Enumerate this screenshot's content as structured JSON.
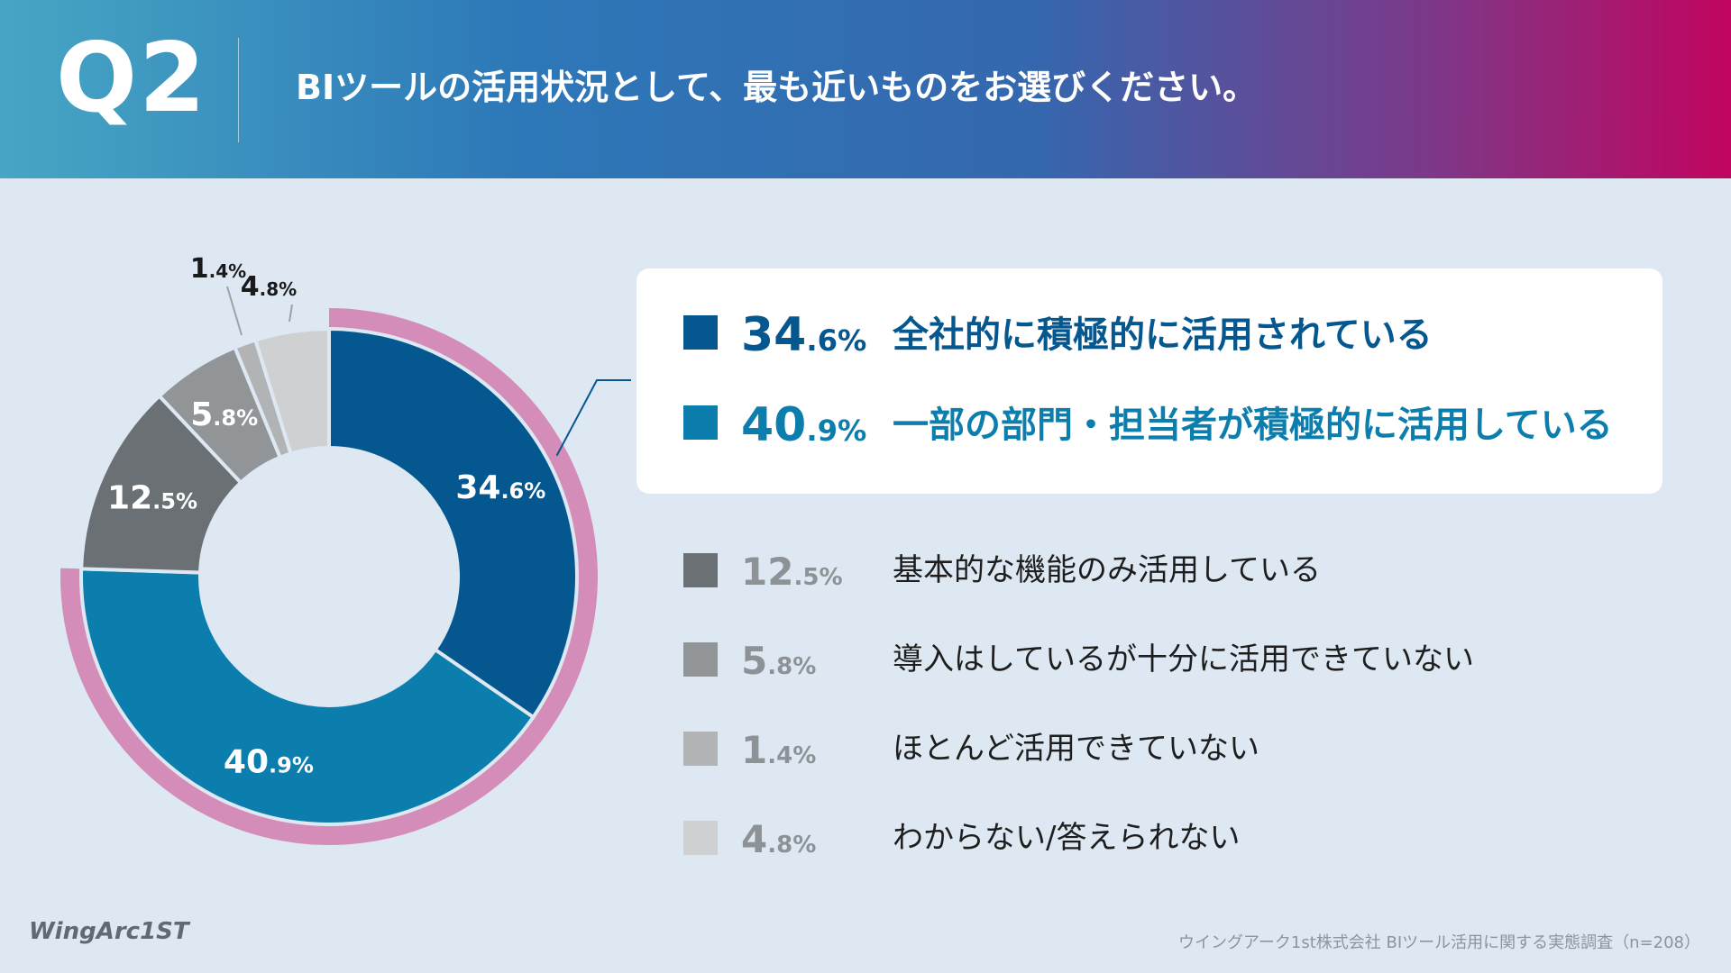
{
  "header": {
    "question_number": "Q2",
    "question": "BIツールの活用状況として、最も近いものをお選びください。"
  },
  "chart_data": {
    "type": "pie",
    "series": [
      {
        "label": "全社的に積極的に活用されている",
        "value": 34.6,
        "int": "34",
        "dec": ".6%",
        "color": "#05578f",
        "text_color": "#05578f"
      },
      {
        "label": "一部の部門・担当者が積極的に活用している",
        "value": 40.9,
        "int": "40",
        "dec": ".9%",
        "color": "#0c7ead",
        "text_color": "#0c7ead"
      },
      {
        "label": "基本的な機能のみ活用している",
        "value": 12.5,
        "int": "12",
        "dec": ".5%",
        "color": "#6b7074",
        "text_color": "#8d9296"
      },
      {
        "label": "導入はしているが十分に活用できていない",
        "value": 5.8,
        "int": "5",
        "dec": ".8%",
        "color": "#929597",
        "text_color": "#8d9296"
      },
      {
        "label": "ほとんど活用できていない",
        "value": 1.4,
        "int": "1",
        "dec": ".4%",
        "color": "#b1b3b5",
        "text_color": "#8d9296"
      },
      {
        "label": "わからない/答えられない",
        "value": 4.8,
        "int": "4",
        "dec": ".8%",
        "color": "#cfd0d2",
        "text_color": "#8d9296"
      }
    ],
    "highlight_color": "#d48db8"
  },
  "footer": {
    "logo": "WingArc1ST",
    "source": "ウイングアーク1st株式会社 BIツール活用に関する実態調査（n=208）"
  }
}
